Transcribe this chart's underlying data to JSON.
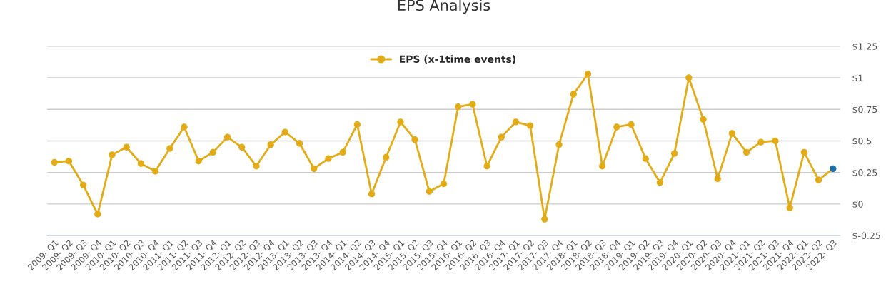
{
  "chart_data": {
    "type": "line",
    "title": "EPS Analysis",
    "categories": [
      "2009- Q1",
      "2009- Q2",
      "2009- Q3",
      "2009- Q4",
      "2010- Q1",
      "2010- Q2",
      "2010- Q3",
      "2010- Q4",
      "2011- Q1",
      "2011- Q2",
      "2011- Q3",
      "2011- Q4",
      "2012- Q1",
      "2012- Q2",
      "2012- Q3",
      "2012- Q4",
      "2013- Q1",
      "2013- Q2",
      "2013- Q3",
      "2013- Q4",
      "2014- Q1",
      "2014- Q2",
      "2014- Q3",
      "2014- Q4",
      "2015- Q1",
      "2015- Q2",
      "2015- Q3",
      "2015- Q4",
      "2016- Q1",
      "2016- Q2",
      "2016- Q3",
      "2016- Q4",
      "2017- Q1",
      "2017- Q2",
      "2017- Q3",
      "2017- Q4",
      "2018- Q1",
      "2018- Q2",
      "2018- Q3",
      "2018- Q4",
      "2019- Q1",
      "2019- Q2",
      "2019- Q3",
      "2019- Q4",
      "2020- Q1",
      "2020- Q2",
      "2020- Q3",
      "2020- Q4",
      "2021- Q1",
      "2021- Q2",
      "2021- Q3",
      "2021- Q4",
      "2022- Q1",
      "2022- Q2",
      "2022- Q3"
    ],
    "series": [
      {
        "name": "EPS (x-1time events)",
        "color": "#e3ac17",
        "colors": [
          "#e3ac17",
          "#e3ac17",
          "#e3ac17",
          "#e3ac17",
          "#e3ac17",
          "#e3ac17",
          "#e3ac17",
          "#e3ac17",
          "#e3ac17",
          "#e3ac17",
          "#e3ac17",
          "#e3ac17",
          "#e3ac17",
          "#e3ac17",
          "#e3ac17",
          "#e3ac17",
          "#e3ac17",
          "#e3ac17",
          "#e3ac17",
          "#e3ac17",
          "#e3ac17",
          "#e3ac17",
          "#e3ac17",
          "#e3ac17",
          "#e3ac17",
          "#e3ac17",
          "#e3ac17",
          "#e3ac17",
          "#e3ac17",
          "#e3ac17",
          "#e3ac17",
          "#e3ac17",
          "#e3ac17",
          "#e3ac17",
          "#e3ac17",
          "#e3ac17",
          "#e3ac17",
          "#e3ac17",
          "#e3ac17",
          "#e3ac17",
          "#e3ac17",
          "#e3ac17",
          "#e3ac17",
          "#e3ac17",
          "#e3ac17",
          "#e3ac17",
          "#e3ac17",
          "#e3ac17",
          "#e3ac17",
          "#e3ac17",
          "#e3ac17",
          "#e3ac17",
          "#e3ac17",
          "#e3ac17",
          "#1a6fa8"
        ],
        "values": [
          0.33,
          0.34,
          0.15,
          -0.08,
          0.39,
          0.45,
          0.32,
          0.26,
          0.44,
          0.61,
          0.34,
          0.41,
          0.53,
          0.45,
          0.3,
          0.47,
          0.57,
          0.48,
          0.28,
          0.36,
          0.41,
          0.63,
          0.08,
          0.37,
          0.65,
          0.51,
          0.1,
          0.16,
          0.77,
          0.79,
          0.3,
          0.53,
          0.65,
          0.62,
          -0.12,
          0.47,
          0.87,
          1.03,
          0.3,
          0.61,
          0.63,
          0.36,
          0.17,
          0.4,
          1.0,
          0.67,
          0.2,
          0.56,
          0.41,
          0.49,
          0.5,
          -0.03,
          0.41,
          0.19,
          0.28
        ]
      }
    ],
    "ylim": [
      -0.25,
      1.25
    ],
    "yticks": [
      {
        "value": -0.25,
        "label": "$-0.25"
      },
      {
        "value": 0,
        "label": "$0"
      },
      {
        "value": 0.25,
        "label": "$0.25"
      },
      {
        "value": 0.5,
        "label": "$0.5"
      },
      {
        "value": 0.75,
        "label": "$0.75"
      },
      {
        "value": 1,
        "label": "$1"
      },
      {
        "value": 1.25,
        "label": "$1.25"
      }
    ],
    "grid": "y",
    "legend": "top",
    "marker": "circle",
    "line_style": "solid"
  }
}
